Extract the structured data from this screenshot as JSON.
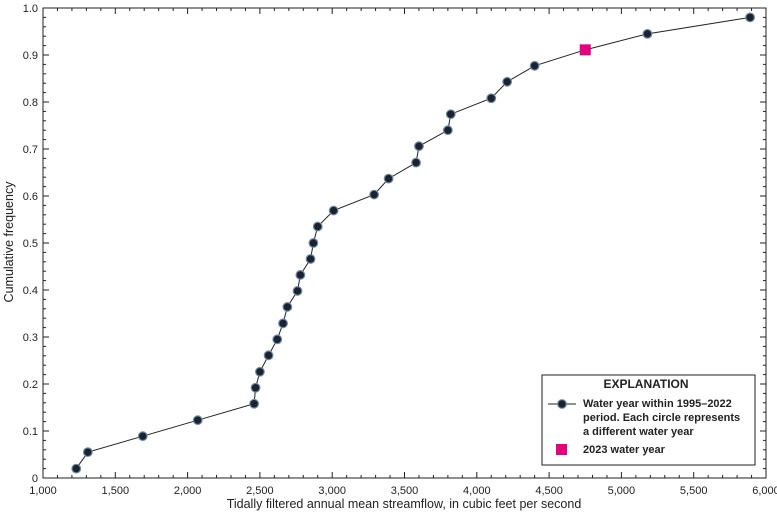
{
  "chart_data": {
    "type": "scatter",
    "xlabel": "Tidally filtered annual mean streamflow, in cubic feet per second",
    "ylabel": "Cumulative frequency",
    "xlim": [
      1000,
      6000
    ],
    "ylim": [
      0,
      1.0
    ],
    "x_ticks": [
      1000,
      1500,
      2000,
      2500,
      3000,
      3500,
      4000,
      4500,
      5000,
      5500,
      6000
    ],
    "x_tick_labels": [
      "1,000",
      "1,500",
      "2,000",
      "2,500",
      "3,000",
      "3,500",
      "4,000",
      "4,500",
      "5,000",
      "5,500",
      "6,000"
    ],
    "y_ticks": [
      0,
      0.1,
      0.2,
      0.3,
      0.4,
      0.5,
      0.6,
      0.7,
      0.8,
      0.9,
      1.0
    ],
    "y_tick_labels": [
      "0",
      "0.1",
      "0.2",
      "0.3",
      "0.4",
      "0.5",
      "0.6",
      "0.7",
      "0.8",
      "0.9",
      "1.0"
    ],
    "grid": false,
    "legend": {
      "title": "EXPLANATION",
      "placement": "bottom-right",
      "entries": [
        {
          "lines": [
            "Water year within 1995–2022",
            "period. Each circle represents",
            "a different water year"
          ]
        },
        {
          "lines": [
            "2023 water year"
          ]
        }
      ]
    },
    "series": [
      {
        "name": "Water year within 1995–2022 period. Each circle represents a different water year",
        "marker": "circle",
        "color": "#1b2330",
        "points": [
          [
            1230,
            0.02
          ],
          [
            1310,
            0.055
          ],
          [
            1690,
            0.089
          ],
          [
            2070,
            0.123
          ],
          [
            2460,
            0.158
          ],
          [
            2470,
            0.192
          ],
          [
            2500,
            0.226
          ],
          [
            2560,
            0.261
          ],
          [
            2620,
            0.295
          ],
          [
            2660,
            0.329
          ],
          [
            2690,
            0.364
          ],
          [
            2760,
            0.398
          ],
          [
            2780,
            0.432
          ],
          [
            2850,
            0.466
          ],
          [
            2870,
            0.5
          ],
          [
            2900,
            0.535
          ],
          [
            3010,
            0.569
          ],
          [
            3290,
            0.603
          ],
          [
            3390,
            0.637
          ],
          [
            3580,
            0.671
          ],
          [
            3600,
            0.706
          ],
          [
            3800,
            0.74
          ],
          [
            3820,
            0.774
          ],
          [
            4100,
            0.808
          ],
          [
            4210,
            0.843
          ],
          [
            4400,
            0.877
          ],
          [
            5180,
            0.945
          ],
          [
            5890,
            0.98
          ]
        ]
      },
      {
        "name": "2023 water year",
        "marker": "square",
        "color": "#e6007e",
        "points": [
          [
            4750,
            0.911
          ]
        ]
      }
    ]
  }
}
